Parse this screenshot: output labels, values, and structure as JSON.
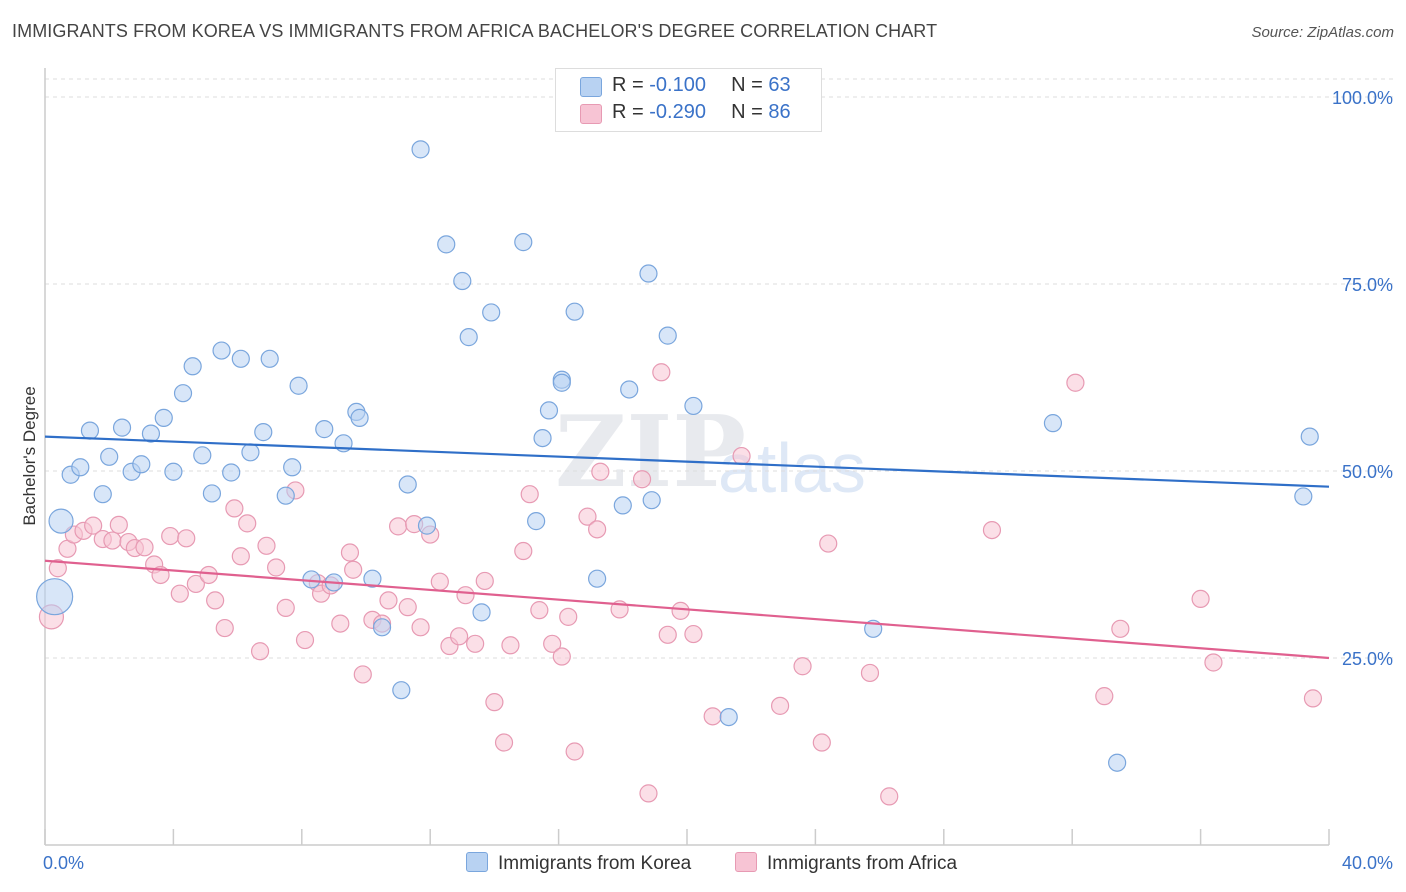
{
  "title": "IMMIGRANTS FROM KOREA VS IMMIGRANTS FROM AFRICA BACHELOR'S DEGREE CORRELATION CHART",
  "source": "Source: ZipAtlas.com",
  "watermark": {
    "zip": "ZIP",
    "atlas": "atlas"
  },
  "legend": {
    "korea": {
      "r_label": "R =",
      "r_value": "-0.100",
      "n_label": "N =",
      "n_value": "63"
    },
    "africa": {
      "r_label": "R =",
      "r_value": "-0.290",
      "n_label": "N =",
      "n_value": "86"
    }
  },
  "colors": {
    "korea_fill": "#b8d2f2",
    "korea_stroke": "#7aa6dd",
    "korea_line": "#2f6fc8",
    "africa_fill": "#f7c4d4",
    "africa_stroke": "#e79ab3",
    "africa_line": "#e0608f",
    "tick_label": "#3a72c8",
    "grid": "#dddddd"
  },
  "chart_data": {
    "type": "scatter",
    "title": "IMMIGRANTS FROM KOREA VS IMMIGRANTS FROM AFRICA BACHELOR'S DEGREE CORRELATION CHART",
    "xlabel": "",
    "ylabel": "Bachelor's Degree",
    "xlim": [
      0,
      40
    ],
    "ylim": [
      0,
      100
    ],
    "x_tick_labels": [
      "0.0%",
      "40.0%"
    ],
    "y_ticks": [
      25,
      50,
      75,
      100
    ],
    "y_tick_labels": [
      "25.0%",
      "50.0%",
      "75.0%",
      "100.0%"
    ],
    "grid": "horizontal dashed",
    "legend_position": "top-center",
    "series": [
      {
        "name": "Immigrants from Korea",
        "r": -0.1,
        "n": 63,
        "trend": {
          "x": [
            0,
            40
          ],
          "y": [
            54.6,
            47.9
          ]
        },
        "points": [
          [
            0.3,
            33.2
          ],
          [
            0.5,
            43.3
          ],
          [
            0.8,
            49.5
          ],
          [
            1.1,
            50.5
          ],
          [
            1.4,
            55.4
          ],
          [
            1.8,
            46.9
          ],
          [
            2.0,
            51.9
          ],
          [
            2.4,
            55.8
          ],
          [
            2.7,
            49.9
          ],
          [
            3.0,
            50.9
          ],
          [
            3.3,
            55.0
          ],
          [
            3.7,
            57.1
          ],
          [
            4.0,
            49.9
          ],
          [
            4.3,
            60.4
          ],
          [
            4.6,
            64.0
          ],
          [
            4.9,
            52.1
          ],
          [
            5.2,
            47.0
          ],
          [
            5.5,
            66.1
          ],
          [
            5.8,
            49.8
          ],
          [
            6.1,
            65.0
          ],
          [
            6.4,
            52.5
          ],
          [
            6.8,
            55.2
          ],
          [
            7.0,
            65.0
          ],
          [
            7.5,
            46.7
          ],
          [
            7.7,
            50.5
          ],
          [
            7.9,
            61.4
          ],
          [
            8.3,
            35.5
          ],
          [
            8.7,
            55.6
          ],
          [
            9.0,
            35.1
          ],
          [
            9.3,
            53.7
          ],
          [
            9.7,
            57.9
          ],
          [
            9.8,
            57.1
          ],
          [
            10.2,
            35.6
          ],
          [
            10.5,
            29.1
          ],
          [
            11.1,
            20.7
          ],
          [
            11.3,
            48.2
          ],
          [
            11.9,
            42.7
          ],
          [
            11.7,
            93.0
          ],
          [
            12.5,
            80.3
          ],
          [
            13.0,
            75.4
          ],
          [
            13.2,
            67.9
          ],
          [
            13.6,
            31.1
          ],
          [
            13.9,
            71.2
          ],
          [
            14.9,
            80.6
          ],
          [
            15.3,
            43.3
          ],
          [
            15.5,
            54.4
          ],
          [
            15.7,
            58.1
          ],
          [
            16.1,
            62.2
          ],
          [
            16.1,
            61.8
          ],
          [
            16.5,
            71.3
          ],
          [
            17.2,
            35.6
          ],
          [
            18.0,
            45.4
          ],
          [
            18.2,
            60.9
          ],
          [
            18.8,
            76.4
          ],
          [
            18.9,
            46.1
          ],
          [
            19.4,
            68.1
          ],
          [
            20.2,
            58.7
          ],
          [
            21.3,
            17.1
          ],
          [
            25.8,
            28.9
          ],
          [
            31.4,
            56.4
          ],
          [
            33.4,
            11.0
          ],
          [
            39.2,
            46.6
          ],
          [
            39.4,
            54.6
          ]
        ],
        "point_sizes": {
          "[0.3,33.2]": "large",
          "[0.5,43.3]": "medium-large"
        }
      },
      {
        "name": "Immigrants from Africa",
        "r": -0.29,
        "n": 86,
        "trend": {
          "x": [
            0,
            40
          ],
          "y": [
            38.0,
            25.0
          ]
        },
        "points": [
          [
            0.2,
            30.5
          ],
          [
            0.4,
            37.0
          ],
          [
            0.7,
            39.6
          ],
          [
            0.9,
            41.5
          ],
          [
            1.2,
            42.0
          ],
          [
            1.5,
            42.7
          ],
          [
            1.8,
            40.9
          ],
          [
            2.1,
            40.7
          ],
          [
            2.3,
            42.8
          ],
          [
            2.6,
            40.5
          ],
          [
            2.8,
            39.7
          ],
          [
            3.1,
            39.8
          ],
          [
            3.4,
            37.5
          ],
          [
            3.6,
            36.1
          ],
          [
            3.9,
            41.3
          ],
          [
            4.2,
            33.6
          ],
          [
            4.4,
            41.0
          ],
          [
            4.7,
            34.9
          ],
          [
            5.1,
            36.1
          ],
          [
            5.3,
            32.7
          ],
          [
            5.6,
            29.0
          ],
          [
            5.9,
            45.0
          ],
          [
            6.1,
            38.6
          ],
          [
            6.3,
            43.0
          ],
          [
            6.7,
            25.9
          ],
          [
            6.9,
            40.0
          ],
          [
            7.2,
            37.1
          ],
          [
            7.5,
            31.7
          ],
          [
            7.8,
            47.4
          ],
          [
            8.1,
            27.4
          ],
          [
            8.5,
            35.0
          ],
          [
            8.6,
            33.6
          ],
          [
            8.9,
            34.7
          ],
          [
            9.2,
            29.6
          ],
          [
            9.5,
            39.1
          ],
          [
            9.6,
            36.8
          ],
          [
            9.9,
            22.8
          ],
          [
            10.2,
            30.1
          ],
          [
            10.5,
            29.6
          ],
          [
            10.7,
            32.7
          ],
          [
            11.0,
            42.6
          ],
          [
            11.3,
            31.8
          ],
          [
            11.5,
            42.9
          ],
          [
            11.7,
            29.1
          ],
          [
            12.0,
            41.5
          ],
          [
            12.3,
            35.2
          ],
          [
            12.6,
            26.6
          ],
          [
            12.9,
            27.9
          ],
          [
            13.1,
            33.4
          ],
          [
            13.4,
            26.9
          ],
          [
            13.7,
            35.3
          ],
          [
            14.0,
            19.1
          ],
          [
            14.3,
            13.7
          ],
          [
            14.5,
            26.7
          ],
          [
            14.9,
            39.3
          ],
          [
            15.1,
            46.9
          ],
          [
            15.4,
            31.4
          ],
          [
            15.8,
            26.9
          ],
          [
            16.1,
            25.2
          ],
          [
            16.3,
            30.5
          ],
          [
            16.5,
            12.5
          ],
          [
            16.9,
            43.9
          ],
          [
            17.2,
            42.2
          ],
          [
            17.3,
            49.9
          ],
          [
            17.9,
            31.5
          ],
          [
            18.6,
            48.9
          ],
          [
            18.8,
            6.9
          ],
          [
            19.2,
            63.2
          ],
          [
            19.4,
            28.1
          ],
          [
            19.8,
            31.3
          ],
          [
            20.2,
            28.2
          ],
          [
            20.8,
            17.2
          ],
          [
            21.7,
            52.0
          ],
          [
            22.9,
            18.6
          ],
          [
            23.6,
            23.9
          ],
          [
            24.2,
            13.7
          ],
          [
            24.4,
            40.3
          ],
          [
            25.7,
            23.0
          ],
          [
            26.3,
            6.5
          ],
          [
            29.5,
            42.1
          ],
          [
            32.1,
            61.8
          ],
          [
            33.0,
            19.9
          ],
          [
            33.5,
            28.9
          ],
          [
            36.0,
            32.9
          ],
          [
            36.4,
            24.4
          ],
          [
            39.5,
            19.6
          ]
        ]
      }
    ]
  },
  "bottom_legend": {
    "korea_label": "Immigrants from Korea",
    "africa_label": "Immigrants from Africa"
  },
  "axis": {
    "x_min_label": "0.0%",
    "x_max_label": "40.0%"
  }
}
